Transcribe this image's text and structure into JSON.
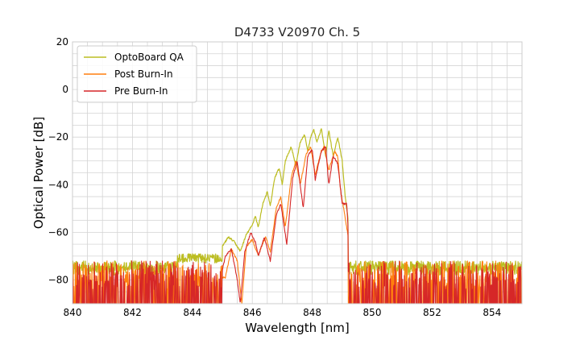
{
  "chart_data": {
    "type": "line",
    "title": "D4733 V20970 Ch. 5",
    "xlabel": "Wavelength [nm]",
    "ylabel": "Optical Power [dB]",
    "xlim": [
      840,
      855
    ],
    "ylim": [
      -90,
      20
    ],
    "xticks": [
      840,
      842,
      844,
      846,
      848,
      850,
      852,
      854
    ],
    "yticks": [
      -80,
      -60,
      -40,
      -20,
      0,
      20
    ],
    "xtick_labels": [
      "840",
      "842",
      "844",
      "846",
      "848",
      "850",
      "852",
      "854"
    ],
    "ytick_labels": [
      "−80",
      "−60",
      "−40",
      "−20",
      "0",
      "20"
    ],
    "minor_grid_step_x": 0.5,
    "minor_grid_step_y": 5,
    "grid": true,
    "legend_position": "upper-left",
    "noise_floor": {
      "range": [
        -90,
        -71
      ],
      "x_left_end": 845.0,
      "x_right_start": 849.2
    },
    "series": [
      {
        "name": "OptoBoard QA",
        "color": "#bcbd22",
        "points": [
          [
            840,
            -76
          ],
          [
            843,
            -75
          ],
          [
            844,
            -72
          ],
          [
            844.8,
            -70
          ],
          [
            845.0,
            -66
          ],
          [
            845.2,
            -62
          ],
          [
            845.4,
            -64
          ],
          [
            845.6,
            -68
          ],
          [
            845.8,
            -61
          ],
          [
            846.0,
            -57
          ],
          [
            846.1,
            -53
          ],
          [
            846.2,
            -58
          ],
          [
            846.35,
            -48
          ],
          [
            846.5,
            -43
          ],
          [
            846.6,
            -49
          ],
          [
            846.75,
            -37
          ],
          [
            846.9,
            -33
          ],
          [
            847.0,
            -40
          ],
          [
            847.1,
            -30
          ],
          [
            847.3,
            -24
          ],
          [
            847.45,
            -32
          ],
          [
            847.6,
            -22
          ],
          [
            847.75,
            -19
          ],
          [
            847.85,
            -26
          ],
          [
            847.95,
            -20
          ],
          [
            848.05,
            -17
          ],
          [
            848.15,
            -22
          ],
          [
            848.25,
            -19
          ],
          [
            848.3,
            -16
          ],
          [
            848.45,
            -28
          ],
          [
            848.55,
            -17
          ],
          [
            848.7,
            -28
          ],
          [
            848.85,
            -20
          ],
          [
            849.0,
            -30
          ],
          [
            849.1,
            -45
          ],
          [
            849.2,
            -55
          ],
          [
            849.3,
            -70
          ],
          [
            849.4,
            -74
          ],
          [
            850,
            -75
          ],
          [
            855,
            -75
          ]
        ]
      },
      {
        "name": "Post Burn-In",
        "color": "#ff7f0e",
        "points": [
          [
            840,
            -80
          ],
          [
            845.1,
            -79
          ],
          [
            845.3,
            -67
          ],
          [
            845.5,
            -72
          ],
          [
            845.65,
            -90
          ],
          [
            845.8,
            -66
          ],
          [
            846.0,
            -63
          ],
          [
            846.2,
            -70
          ],
          [
            846.3,
            -66
          ],
          [
            846.45,
            -62
          ],
          [
            846.6,
            -68
          ],
          [
            846.8,
            -50
          ],
          [
            846.95,
            -45
          ],
          [
            847.1,
            -58
          ],
          [
            847.3,
            -37
          ],
          [
            847.45,
            -30
          ],
          [
            847.6,
            -40
          ],
          [
            847.8,
            -27
          ],
          [
            847.95,
            -24
          ],
          [
            848.1,
            -36
          ],
          [
            848.3,
            -26
          ],
          [
            848.4,
            -24
          ],
          [
            848.55,
            -34
          ],
          [
            848.75,
            -26
          ],
          [
            848.85,
            -28
          ],
          [
            848.95,
            -43
          ],
          [
            849.05,
            -50
          ],
          [
            849.2,
            -62
          ],
          [
            849.3,
            -72
          ],
          [
            849.4,
            -79
          ],
          [
            855,
            -79
          ]
        ]
      },
      {
        "name": "Pre Burn-In",
        "color": "#d62728",
        "points": [
          [
            840,
            -82
          ],
          [
            844.9,
            -82
          ],
          [
            845.1,
            -70
          ],
          [
            845.3,
            -67
          ],
          [
            845.5,
            -80
          ],
          [
            845.6,
            -90
          ],
          [
            845.75,
            -68
          ],
          [
            845.95,
            -60
          ],
          [
            846.1,
            -64
          ],
          [
            846.2,
            -70
          ],
          [
            846.4,
            -62
          ],
          [
            846.6,
            -72
          ],
          [
            846.8,
            -53
          ],
          [
            846.95,
            -48
          ],
          [
            847.15,
            -65
          ],
          [
            847.35,
            -37
          ],
          [
            847.5,
            -30
          ],
          [
            847.7,
            -50
          ],
          [
            847.85,
            -28
          ],
          [
            848.0,
            -25
          ],
          [
            848.1,
            -38
          ],
          [
            848.3,
            -26
          ],
          [
            848.45,
            -24
          ],
          [
            848.55,
            -40
          ],
          [
            848.7,
            -28
          ],
          [
            848.85,
            -31
          ],
          [
            849.0,
            -48
          ],
          [
            849.15,
            -48
          ],
          [
            849.3,
            -80
          ],
          [
            855,
            -82
          ]
        ]
      }
    ]
  }
}
